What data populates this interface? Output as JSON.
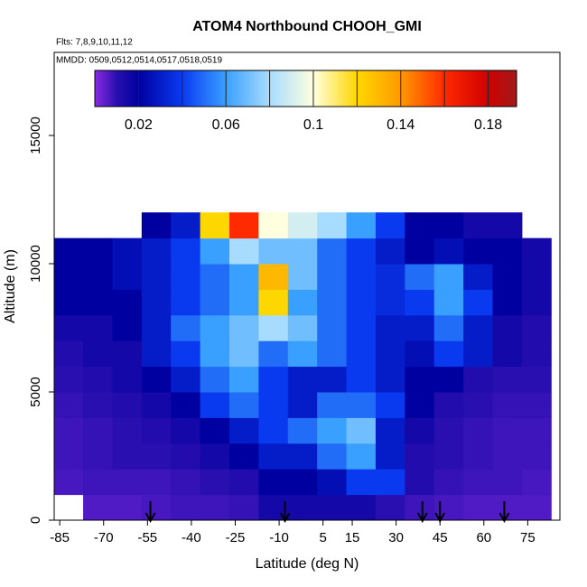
{
  "chart_data": {
    "type": "heatmap",
    "title": "ATOM4 Northbound CHOOH_GMI",
    "flights_note": "Flts: 7,8,9,10,11,12",
    "dates_note": "MMDD: 0509,0512,0514,0517,0518,0519",
    "x_label": "Latitude (deg N)",
    "y_label": "Altitude (m)",
    "xlim": [
      -86.9,
      86
    ],
    "ylim": [
      0,
      18240
    ],
    "xticks": [
      -85,
      -70,
      -55,
      -40,
      -25,
      -10,
      5,
      15,
      30,
      45,
      60,
      75
    ],
    "yticks": [
      0,
      5000,
      10000,
      15000
    ],
    "x_edges": [
      -87,
      -77,
      -67,
      -57,
      -47,
      -37,
      -27,
      -17,
      -7,
      3,
      13,
      23,
      33,
      43,
      53,
      63,
      73,
      83
    ],
    "y_edges": [
      0,
      1000,
      2000,
      3000,
      4000,
      5000,
      6000,
      7000,
      8000,
      9000,
      10000,
      11000,
      12000
    ],
    "z": [
      [
        null,
        0.006,
        0.006,
        0.007,
        0.008,
        0.008,
        0.009,
        0.015,
        0.015,
        0.015,
        0.015,
        0.01,
        0.008,
        0.007,
        0.006,
        0.006,
        0.006
      ],
      [
        0.007,
        0.008,
        0.008,
        0.008,
        0.009,
        0.01,
        0.012,
        0.02,
        0.02,
        0.025,
        0.04,
        0.04,
        0.012,
        0.009,
        0.008,
        0.008,
        0.007
      ],
      [
        0.008,
        0.009,
        0.01,
        0.01,
        0.012,
        0.015,
        0.02,
        0.03,
        0.03,
        0.05,
        0.06,
        0.03,
        0.012,
        0.01,
        0.009,
        0.008,
        0.008
      ],
      [
        0.008,
        0.009,
        0.01,
        0.012,
        0.015,
        0.02,
        0.03,
        0.04,
        0.05,
        0.06,
        0.07,
        0.03,
        0.015,
        0.01,
        0.009,
        0.008,
        0.008
      ],
      [
        0.009,
        0.01,
        0.012,
        0.015,
        0.02,
        0.04,
        0.05,
        0.04,
        0.03,
        0.05,
        0.05,
        0.04,
        0.02,
        0.012,
        0.01,
        0.009,
        0.009
      ],
      [
        0.01,
        0.012,
        0.015,
        0.02,
        0.03,
        0.05,
        0.06,
        0.04,
        0.03,
        0.03,
        0.04,
        0.03,
        0.02,
        0.02,
        0.012,
        0.01,
        0.01
      ],
      [
        0.012,
        0.015,
        0.015,
        0.03,
        0.04,
        0.06,
        0.07,
        0.05,
        0.06,
        0.05,
        0.04,
        0.03,
        0.025,
        0.04,
        0.03,
        0.015,
        0.012
      ],
      [
        0.015,
        0.015,
        0.02,
        0.03,
        0.05,
        0.06,
        0.07,
        0.08,
        0.07,
        0.05,
        0.04,
        0.03,
        0.03,
        0.05,
        0.03,
        0.015,
        0.012
      ],
      [
        0.02,
        0.02,
        0.02,
        0.03,
        0.04,
        0.05,
        0.06,
        0.12,
        0.06,
        0.05,
        0.04,
        0.035,
        0.04,
        0.06,
        0.04,
        0.02,
        0.015
      ],
      [
        0.02,
        0.02,
        0.025,
        0.03,
        0.04,
        0.05,
        0.06,
        0.13,
        0.07,
        0.05,
        0.04,
        0.035,
        0.05,
        0.06,
        0.03,
        0.02,
        0.015
      ],
      [
        0.02,
        0.02,
        0.025,
        0.03,
        0.04,
        0.06,
        0.08,
        0.07,
        0.07,
        0.05,
        0.04,
        0.03,
        0.02,
        0.025,
        0.02,
        0.02,
        0.015
      ],
      [
        null,
        null,
        null,
        0.02,
        0.03,
        0.12,
        0.16,
        0.1,
        0.09,
        0.08,
        0.06,
        0.04,
        0.02,
        0.02,
        0.015,
        0.015,
        null
      ]
    ],
    "colorbar_lim": [
      0,
      0.193
    ],
    "colorbar_ticks": [
      0.02,
      0.06,
      0.1,
      0.14,
      0.18
    ],
    "colorbar_breaks": [
      0.02,
      0.04,
      0.06,
      0.08,
      0.1,
      0.12,
      0.14,
      0.16,
      0.18
    ],
    "colorbar_stops": [
      [
        0,
        "#8a2be2"
      ],
      [
        0.01,
        "#2a0fb0"
      ],
      [
        0.02,
        "#0000a0"
      ],
      [
        0.04,
        "#0a3af0"
      ],
      [
        0.06,
        "#3aa0ff"
      ],
      [
        0.08,
        "#a8dcff"
      ],
      [
        0.1,
        "#ffffe0"
      ],
      [
        0.12,
        "#ffd700"
      ],
      [
        0.14,
        "#ff9900"
      ],
      [
        0.16,
        "#ff2a00"
      ],
      [
        0.18,
        "#d00000"
      ],
      [
        0.193,
        "#a01a1a"
      ]
    ],
    "arrows": [
      -54,
      -8,
      39,
      45,
      67
    ]
  }
}
